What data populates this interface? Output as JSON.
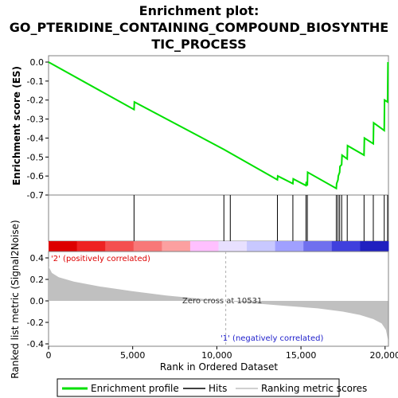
{
  "chart_data": {
    "type": "line",
    "title_lines": [
      "Enrichment plot:",
      "GO_PTERIDINE_CONTAINING_COMPOUND_BIOSYNTHE",
      "TIC_PROCESS"
    ],
    "es_panel": {
      "ylabel": "Enrichment score (ES)",
      "ylim": [
        -0.7,
        0.0
      ],
      "yticks": [
        "0.0",
        "-0.1",
        "-0.2",
        "-0.3",
        "-0.4",
        "-0.5",
        "-0.6",
        "-0.7"
      ],
      "series": [
        {
          "name": "Enrichment profile",
          "color": "#00e000",
          "points": [
            [
              0,
              0.0
            ],
            [
              5080,
              -0.25
            ],
            [
              5100,
              -0.21
            ],
            [
              10420,
              -0.46
            ],
            [
              13600,
              -0.62
            ],
            [
              13620,
              -0.6
            ],
            [
              14520,
              -0.64
            ],
            [
              14540,
              -0.615
            ],
            [
              15300,
              -0.65
            ],
            [
              15320,
              -0.63
            ],
            [
              15380,
              -0.65
            ],
            [
              15400,
              -0.58
            ],
            [
              17100,
              -0.665
            ],
            [
              17120,
              -0.64
            ],
            [
              17200,
              -0.62
            ],
            [
              17220,
              -0.6
            ],
            [
              17300,
              -0.58
            ],
            [
              17320,
              -0.55
            ],
            [
              17420,
              -0.54
            ],
            [
              17440,
              -0.49
            ],
            [
              17750,
              -0.51
            ],
            [
              17770,
              -0.44
            ],
            [
              18750,
              -0.49
            ],
            [
              18770,
              -0.4
            ],
            [
              19300,
              -0.43
            ],
            [
              19320,
              -0.32
            ],
            [
              19950,
              -0.36
            ],
            [
              19970,
              -0.2
            ],
            [
              20150,
              -0.21
            ],
            [
              20170,
              0.0
            ]
          ]
        }
      ]
    },
    "hits": [
      5080,
      10420,
      10800,
      13600,
      14520,
      15300,
      15380,
      17100,
      17200,
      17300,
      17420,
      17750,
      18750,
      19300,
      19950,
      20150
    ],
    "heatmap_colors": [
      "#dd0000",
      "#ee2222",
      "#f45050",
      "#f87878",
      "#fca0a0",
      "#ffc0ff",
      "#e8e0ff",
      "#c8c8ff",
      "#a0a0ff",
      "#7070ee",
      "#4040dd",
      "#2020c0"
    ],
    "metric_panel": {
      "ylabel": "Ranked list metric (Signal2Noise)",
      "ylim": [
        -0.4,
        0.4
      ],
      "yticks": [
        "0.4",
        "0.2",
        "0.0",
        "-0.2",
        "-0.4"
      ],
      "fill_color": "#c0c0c0",
      "profile": [
        [
          0,
          0.32
        ],
        [
          200,
          0.26
        ],
        [
          600,
          0.22
        ],
        [
          1500,
          0.18
        ],
        [
          3000,
          0.135
        ],
        [
          5000,
          0.09
        ],
        [
          7000,
          0.05
        ],
        [
          9000,
          0.02
        ],
        [
          10531,
          0.0
        ],
        [
          12000,
          -0.02
        ],
        [
          14000,
          -0.045
        ],
        [
          16000,
          -0.07
        ],
        [
          17500,
          -0.1
        ],
        [
          18500,
          -0.13
        ],
        [
          19300,
          -0.17
        ],
        [
          19800,
          -0.21
        ],
        [
          20050,
          -0.27
        ],
        [
          20170,
          -0.36
        ]
      ],
      "positive_label": "'2' (positively correlated)",
      "negative_label": "'1' (negatively correlated)",
      "zero_cross_label": "Zero cross at 10531",
      "zero_cross": 10531
    },
    "x_axis": {
      "label": "Rank in Ordered Dataset",
      "range": [
        0,
        20200
      ],
      "ticks": [
        "0",
        "5,000",
        "10,000",
        "15,000",
        "20,000"
      ],
      "tick_values": [
        0,
        5000,
        10000,
        15000,
        20000
      ]
    },
    "legend": {
      "placement": "bottom",
      "entries": [
        "Enrichment profile",
        "Hits",
        "Ranking metric scores"
      ]
    }
  }
}
